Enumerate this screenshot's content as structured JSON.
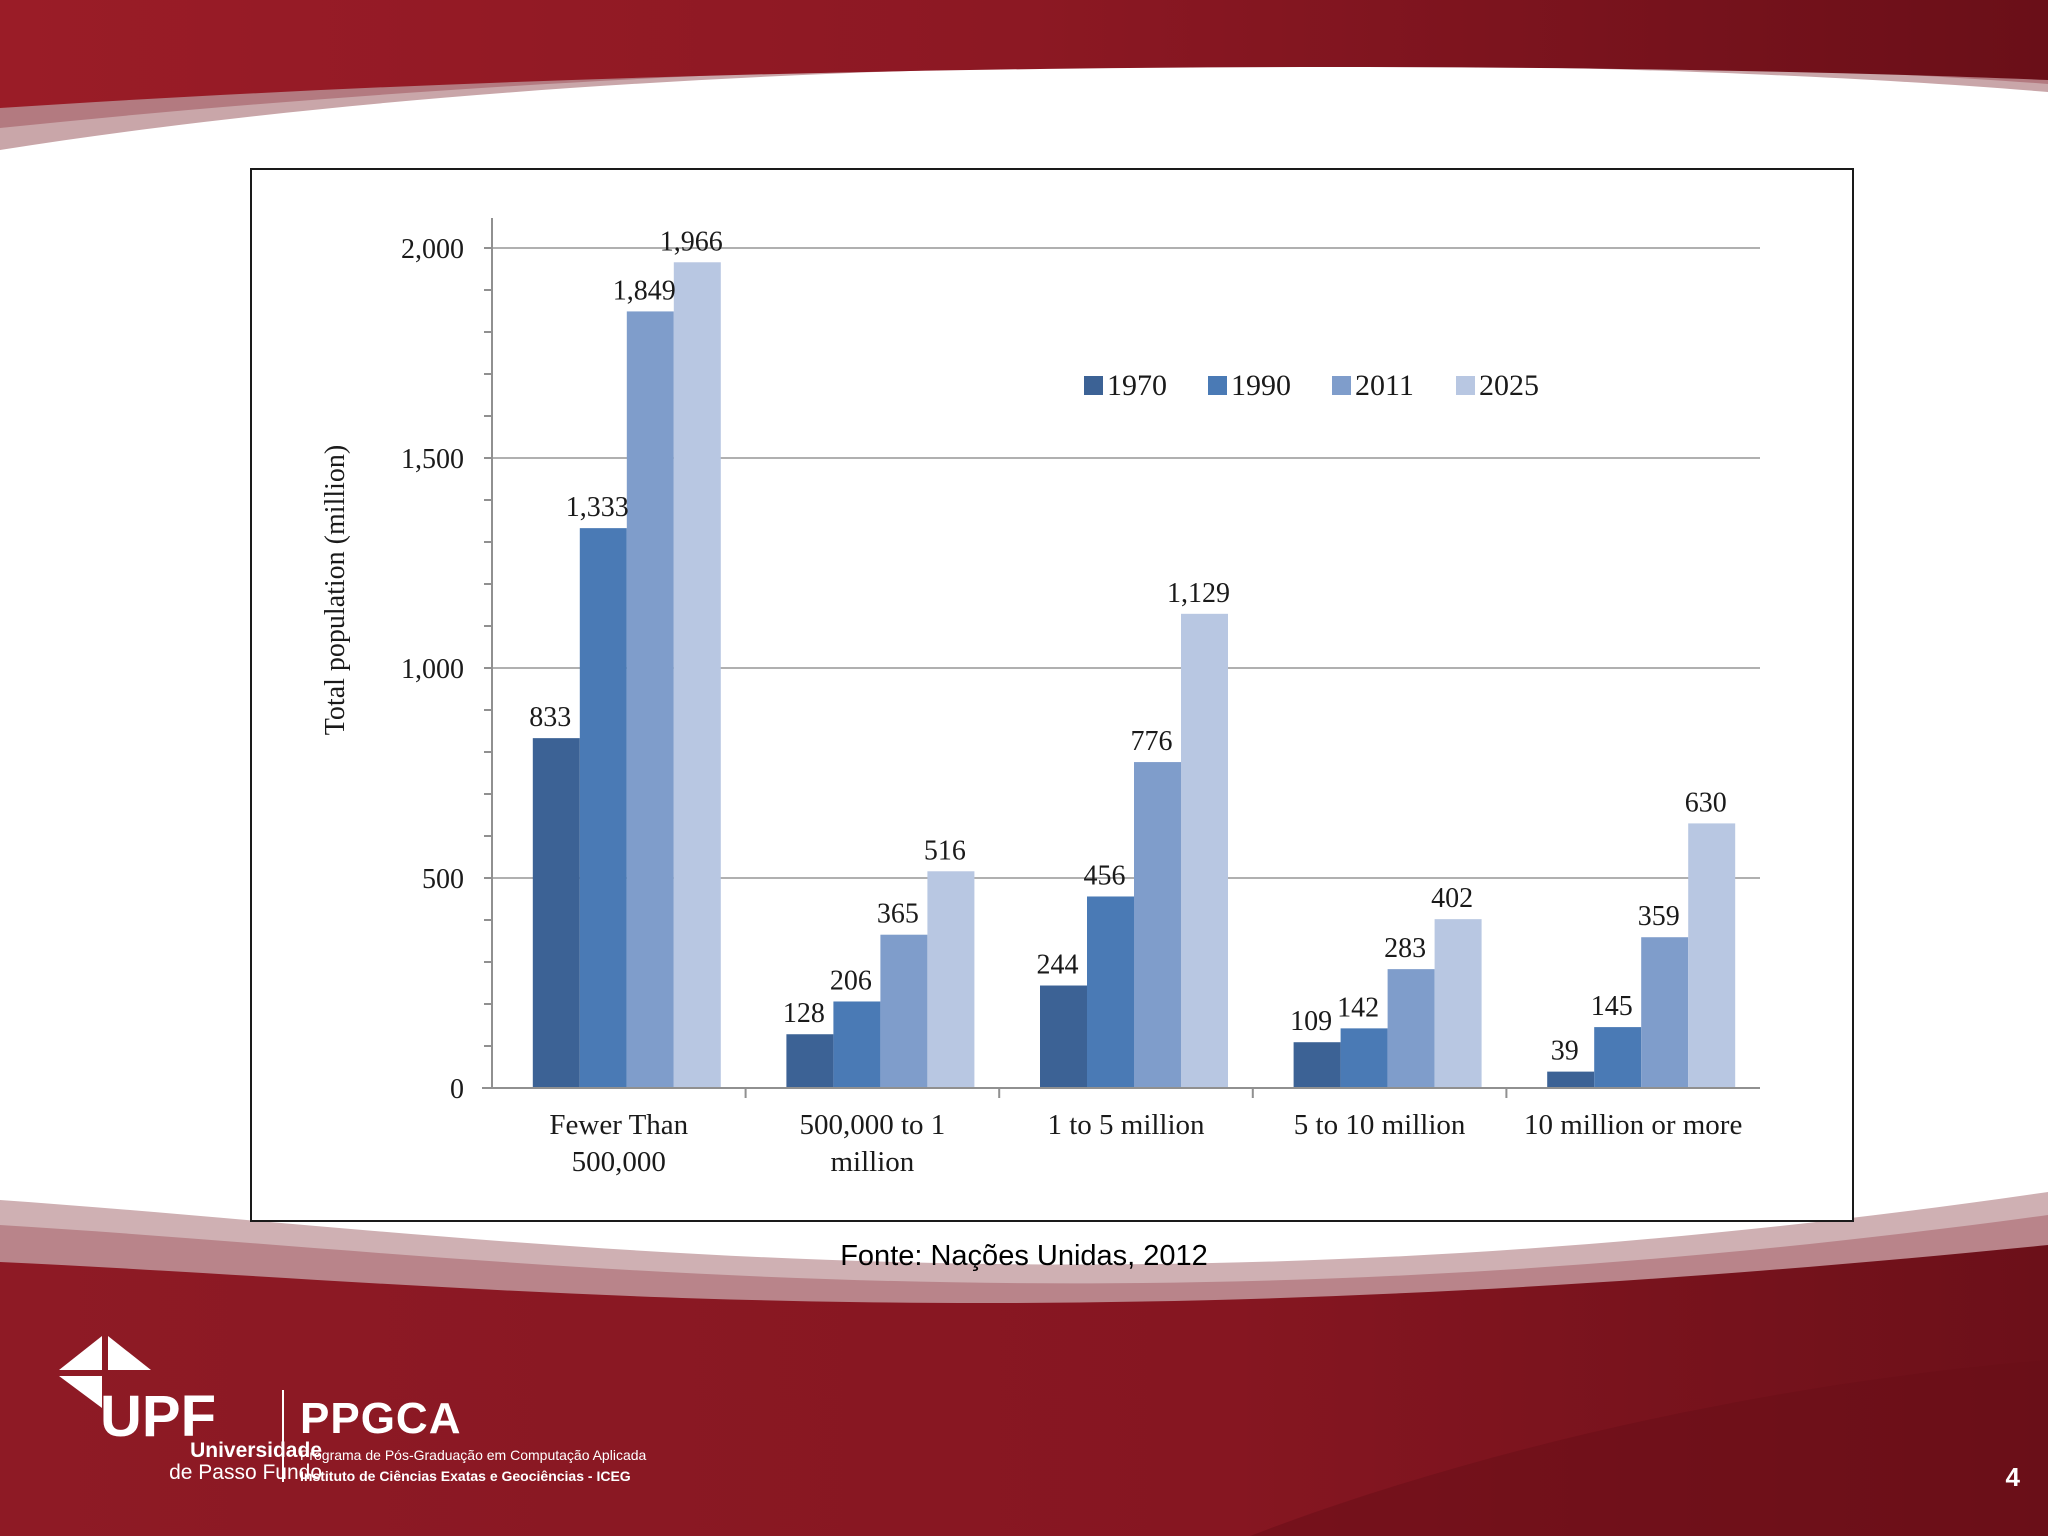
{
  "slide": {
    "source": "Fonte: Nações Unidas, 2012",
    "page_number": "4",
    "colors": {
      "brand_red": "#8f1a25",
      "brand_dark": "#5a0d16"
    }
  },
  "logo": {
    "mark": "UPF",
    "university_line1": "Universidade",
    "university_line2": "de Passo Fundo",
    "program": "PPGCA",
    "program_full": "Programa de Pós-Graduação em Computação Aplicada",
    "institute": "Instituto de Ciências Exatas e Geociências - ICEG"
  },
  "chart_data": {
    "type": "bar",
    "title": "",
    "xlabel": "",
    "ylabel": "Total population (million)",
    "ylim": [
      0,
      2000
    ],
    "yticks": [
      0,
      500,
      1000,
      1500,
      2000
    ],
    "ytick_labels": [
      "0",
      "500",
      "1,000",
      "1,500",
      "2,000"
    ],
    "grid": true,
    "legend_position": "top-right",
    "categories": [
      [
        "Fewer Than",
        "500,000"
      ],
      [
        "500,000 to 1",
        "million"
      ],
      [
        "1 to 5 million"
      ],
      [
        "5 to 10 million"
      ],
      [
        "10 million or more"
      ]
    ],
    "series": [
      {
        "name": "1970",
        "color": "#3c6295",
        "values": [
          833,
          128,
          244,
          109,
          39
        ],
        "labels": [
          "833",
          "128",
          "244",
          "109",
          "39"
        ]
      },
      {
        "name": "1990",
        "color": "#4a7ab5",
        "values": [
          1333,
          206,
          456,
          142,
          145
        ],
        "labels": [
          "1,333",
          "206",
          "456",
          "142",
          "145"
        ]
      },
      {
        "name": "2011",
        "color": "#7f9dcb",
        "values": [
          1849,
          365,
          776,
          283,
          359
        ],
        "labels": [
          "1,849",
          "365",
          "776",
          "283",
          "359"
        ]
      },
      {
        "name": "2025",
        "color": "#b8c7e2",
        "values": [
          1966,
          516,
          1129,
          402,
          630
        ],
        "labels": [
          "1,966",
          "516",
          "1,129",
          "402",
          "630"
        ]
      }
    ]
  }
}
